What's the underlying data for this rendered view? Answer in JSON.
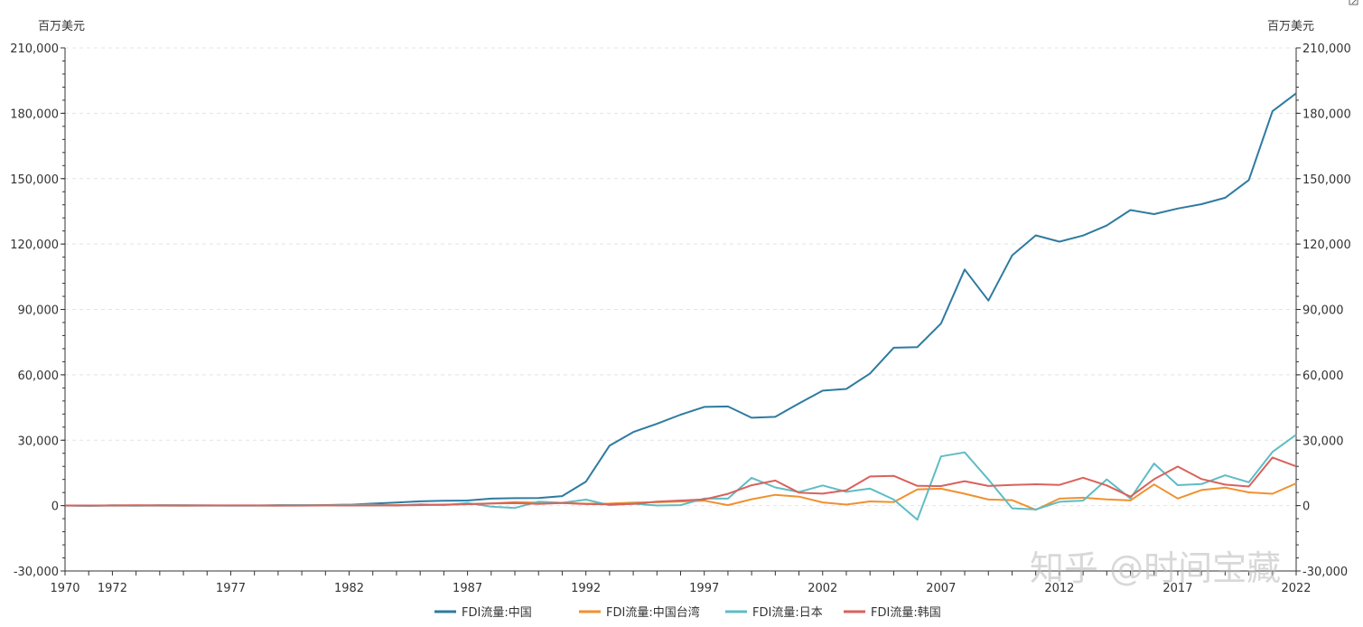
{
  "watermark": "知乎 @时间宝藏",
  "chart_data": {
    "type": "line",
    "unit_left": "百万美元",
    "unit_right": "百万美元",
    "x": [
      1970,
      1971,
      1972,
      1973,
      1974,
      1975,
      1976,
      1977,
      1978,
      1979,
      1980,
      1981,
      1982,
      1983,
      1984,
      1985,
      1986,
      1987,
      1988,
      1989,
      1990,
      1991,
      1992,
      1993,
      1994,
      1995,
      1996,
      1997,
      1998,
      1999,
      2000,
      2001,
      2002,
      2003,
      2004,
      2005,
      2006,
      2007,
      2008,
      2009,
      2010,
      2011,
      2012,
      2013,
      2014,
      2015,
      2016,
      2017,
      2018,
      2019,
      2020,
      2021,
      2022
    ],
    "x_tick_labels": [
      "1970",
      "1972",
      "1977",
      "1982",
      "1987",
      "1992",
      "1997",
      "2002",
      "2007",
      "2012",
      "2017",
      "2022"
    ],
    "ylim": [
      -30000,
      210000
    ],
    "y_ticks": [
      -30000,
      0,
      30000,
      60000,
      90000,
      120000,
      150000,
      180000,
      210000
    ],
    "y_tick_labels": [
      "-30,000",
      "0",
      "30,000",
      "60,000",
      "90,000",
      "120,000",
      "150,000",
      "180,000",
      "210,000"
    ],
    "grid": true,
    "legend_position": "bottom",
    "series": [
      {
        "name": "FDI流量:中国",
        "color": "#2e7ba0",
        "values": [
          0,
          0,
          0,
          0,
          0,
          0,
          0,
          0,
          0,
          0,
          57,
          265,
          430,
          916,
          1419,
          1956,
          2244,
          2314,
          3194,
          3393,
          3487,
          4366,
          11008,
          27515,
          33767,
          37521,
          41726,
          45257,
          45463,
          40319,
          40715,
          46878,
          52743,
          53505,
          60630,
          72406,
          72715,
          83521,
          108312,
          94065,
          114734,
          123985,
          121080,
          123911,
          128502,
          135577,
          133711,
          136315,
          138305,
          141225,
          149342,
          180957,
          189132
        ]
      },
      {
        "name": "FDI流量:中国台湾",
        "color": "#f0912f",
        "values": [
          61,
          -5,
          82,
          95,
          35,
          29,
          45,
          39,
          33,
          23,
          165,
          151,
          103,
          149,
          201,
          342,
          326,
          715,
          961,
          1604,
          1330,
          1271,
          879,
          917,
          1375,
          1559,
          1864,
          2248,
          222,
          2926,
          4928,
          4109,
          1445,
          453,
          1898,
          1625,
          7424,
          7769,
          5432,
          2805,
          2492,
          -1957,
          3207,
          3598,
          2839,
          2391,
          9705,
          3255,
          7120,
          8241,
          6045,
          5435,
          10222
        ]
      },
      {
        "name": "FDI流量:日本",
        "color": "#5fbcc4",
        "values": [
          94,
          -213,
          169,
          -38,
          202,
          225,
          112,
          21,
          11,
          239,
          278,
          189,
          439,
          416,
          -10,
          642,
          226,
          1165,
          -485,
          -1054,
          1806,
          1284,
          2755,
          210,
          888,
          41,
          228,
          3224,
          3193,
          12742,
          8323,
          6241,
          9239,
          6324,
          7816,
          2775,
          -6507,
          22549,
          24425,
          11938,
          -1251,
          -1758,
          1732,
          2304,
          12041,
          3301,
          19299,
          9360,
          9858,
          13906,
          10720,
          24652,
          32509
        ]
      },
      {
        "name": "FDI流量:韩国",
        "color": "#d9625c",
        "values": [
          66,
          64,
          64,
          129,
          105,
          53,
          75,
          102,
          101,
          35,
          6,
          102,
          69,
          69,
          110,
          234,
          460,
          616,
          1014,
          1118,
          789,
          1180,
          727,
          588,
          809,
          1776,
          2325,
          2844,
          5412,
          9333,
          11509,
          5938,
          5478,
          7050,
          13367,
          13643,
          9047,
          8983,
          11188,
          9022,
          9497,
          9773,
          9496,
          12767,
          9274,
          4104,
          12104,
          17913,
          12183,
          9634,
          8765,
          22060,
          18000
        ]
      }
    ]
  }
}
